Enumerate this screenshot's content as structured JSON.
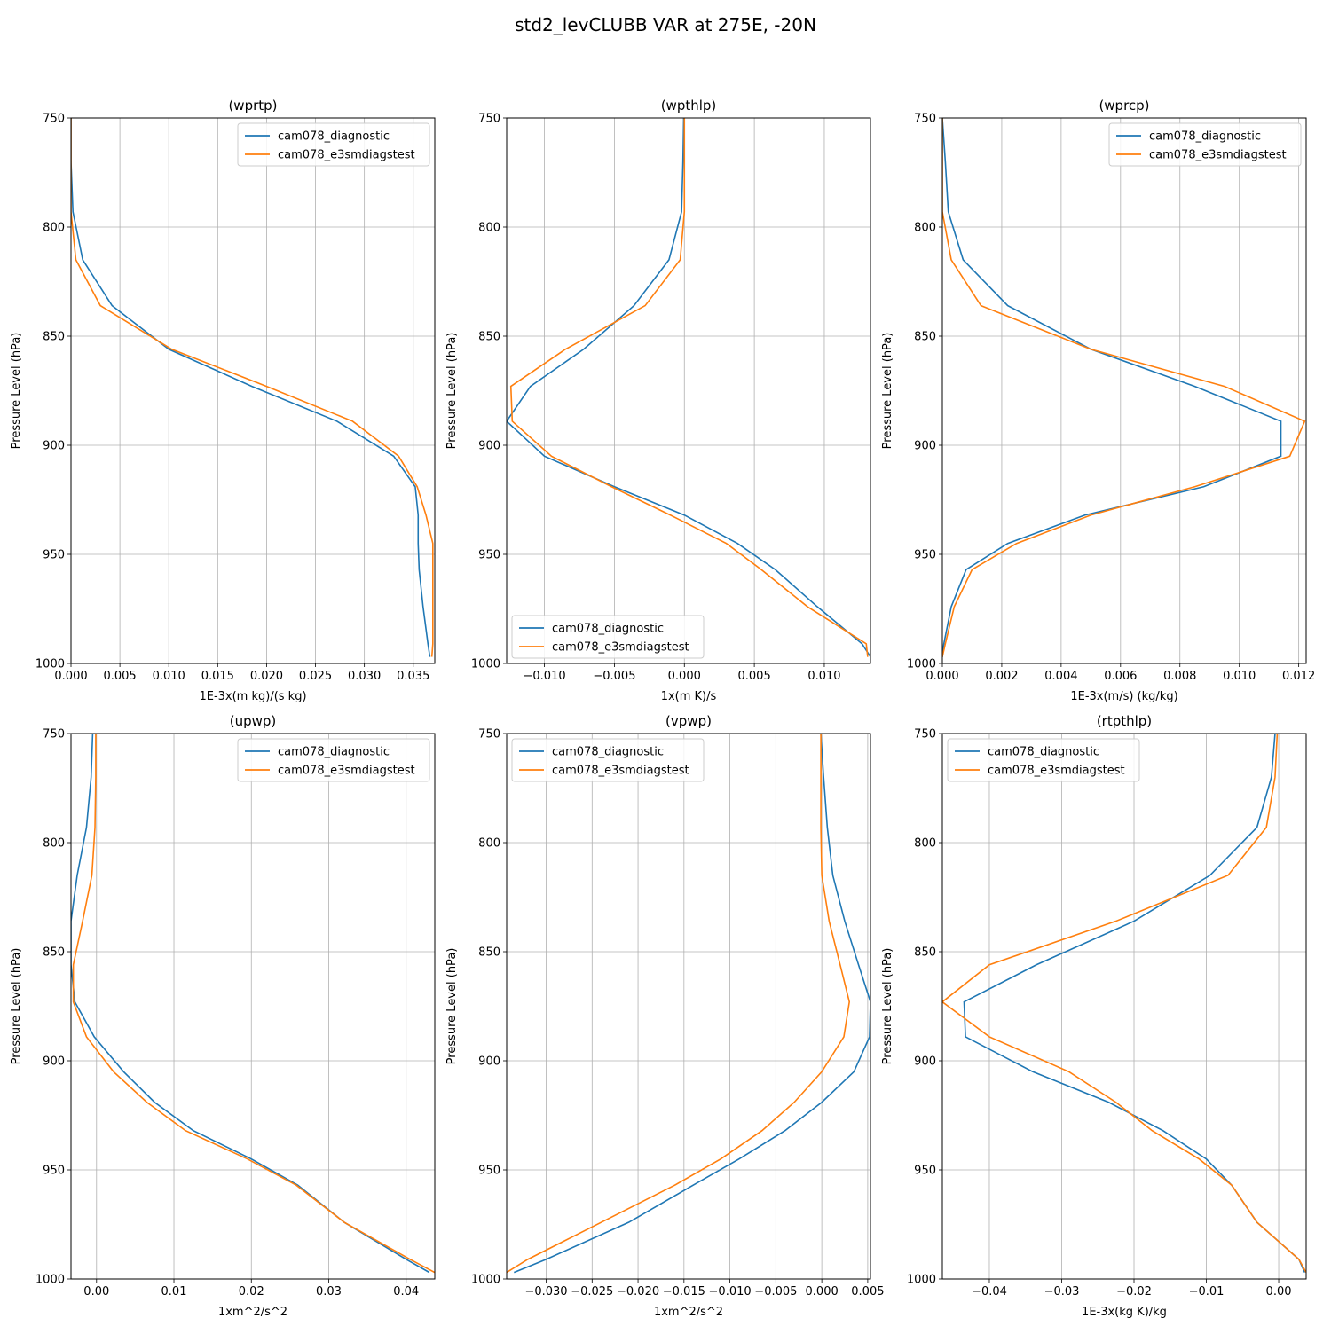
{
  "figure": {
    "title": "std2_levCLUBB VAR at 275E, -20N"
  },
  "colors": {
    "series1": "#1f77b4",
    "series2": "#ff7f0e",
    "grid": "#b0b0b0"
  },
  "chart_data": [
    {
      "type": "line",
      "title": "(wprtp)",
      "xlabel": "1E-3x(m kg)/(s kg)",
      "ylabel": "Pressure Level (hPa)",
      "xlim": [
        0.0,
        0.0372
      ],
      "ylim": [
        1000,
        750
      ],
      "xticks": [
        0.0,
        0.005,
        0.01,
        0.015,
        0.02,
        0.025,
        0.03,
        0.035
      ],
      "xtick_labels": [
        "0.000",
        "0.005",
        "0.010",
        "0.015",
        "0.020",
        "0.025",
        "0.030",
        "0.035"
      ],
      "yticks": [
        750,
        800,
        850,
        900,
        950,
        1000
      ],
      "ytick_labels": [
        "750",
        "800",
        "850",
        "900",
        "950",
        "1000"
      ],
      "grid": true,
      "legend_loc": "upper-right",
      "series": [
        {
          "name": "cam078_diagnostic",
          "x": [
            0.0,
            0.0,
            0.0002,
            0.0012,
            0.0042,
            0.01,
            0.0185,
            0.0272,
            0.033,
            0.0352,
            0.0355,
            0.0355,
            0.0356,
            0.036,
            0.0365,
            0.0367
          ],
          "y": [
            750,
            770,
            793,
            815,
            836,
            856,
            873,
            889,
            905,
            919,
            932,
            945,
            957,
            974,
            991,
            997
          ]
        },
        {
          "name": "cam078_e3smdiagstest",
          "x": [
            0.0,
            0.0,
            0.0,
            0.0005,
            0.003,
            0.0103,
            0.02,
            0.0288,
            0.0335,
            0.0354,
            0.0363,
            0.037,
            0.037,
            0.037,
            0.037,
            0.0369
          ],
          "y": [
            750,
            770,
            793,
            815,
            836,
            856,
            873,
            889,
            905,
            919,
            932,
            945,
            957,
            974,
            991,
            997
          ]
        }
      ]
    },
    {
      "type": "line",
      "title": "(wpthlp)",
      "xlabel": "1x(m K)/s",
      "ylabel": "Pressure Level (hPa)",
      "xlim": [
        -0.0127,
        0.0133
      ],
      "ylim": [
        1000,
        750
      ],
      "xticks": [
        -0.01,
        -0.005,
        0.0,
        0.005,
        0.01
      ],
      "xtick_labels": [
        "−0.010",
        "−0.005",
        "0.000",
        "0.005",
        "0.010"
      ],
      "yticks": [
        750,
        800,
        850,
        900,
        950,
        1000
      ],
      "ytick_labels": [
        "750",
        "800",
        "850",
        "900",
        "950",
        "1000"
      ],
      "grid": true,
      "legend_loc": "lower-left",
      "series": [
        {
          "name": "cam078_diagnostic",
          "x": [
            -5e-05,
            -0.0001,
            -0.0002,
            -0.0011,
            -0.0036,
            -0.0072,
            -0.011,
            -0.0127,
            -0.01,
            -0.005,
            0.0,
            0.0038,
            0.0065,
            0.0095,
            0.0127,
            0.0133
          ],
          "y": [
            750,
            770,
            793,
            815,
            836,
            856,
            873,
            889,
            905,
            919,
            932,
            945,
            957,
            974,
            991,
            997
          ]
        },
        {
          "name": "cam078_e3smdiagstest",
          "x": [
            0.0,
            0.0,
            0.0,
            -0.0003,
            -0.0028,
            -0.0085,
            -0.0124,
            -0.0123,
            -0.0095,
            -0.0052,
            -0.001,
            0.003,
            0.0055,
            0.0088,
            0.013,
            0.0131
          ],
          "y": [
            750,
            770,
            793,
            815,
            836,
            856,
            873,
            889,
            905,
            919,
            932,
            945,
            957,
            974,
            991,
            997
          ]
        }
      ]
    },
    {
      "type": "line",
      "title": "(wprcp)",
      "xlabel": "1E-3x(m/s) (kg/kg)",
      "ylabel": "Pressure Level (hPa)",
      "xlim": [
        0.0,
        0.01225
      ],
      "ylim": [
        1000,
        750
      ],
      "xticks": [
        0.0,
        0.002,
        0.004,
        0.006,
        0.008,
        0.01,
        0.012
      ],
      "xtick_labels": [
        "0.000",
        "0.002",
        "0.004",
        "0.006",
        "0.008",
        "0.010",
        "0.012"
      ],
      "yticks": [
        750,
        800,
        850,
        900,
        950,
        1000
      ],
      "ytick_labels": [
        "750",
        "800",
        "850",
        "900",
        "950",
        "1000"
      ],
      "grid": true,
      "legend_loc": "upper-right",
      "series": [
        {
          "name": "cam078_diagnostic",
          "x": [
            0.0,
            0.0001,
            0.0002,
            0.0007,
            0.0022,
            0.005,
            0.0085,
            0.0114,
            0.0114,
            0.0088,
            0.0048,
            0.0022,
            0.0008,
            0.0003,
            5e-05,
            0.0
          ],
          "y": [
            750,
            770,
            793,
            815,
            836,
            856,
            873,
            889,
            905,
            919,
            932,
            945,
            957,
            974,
            991,
            997
          ]
        },
        {
          "name": "cam078_e3smdiagstest",
          "x": [
            0.0,
            0.0,
            0.0,
            0.0003,
            0.0013,
            0.005,
            0.0095,
            0.0122,
            0.0117,
            0.0085,
            0.005,
            0.0025,
            0.001,
            0.0004,
            0.0001,
            0.0
          ],
          "y": [
            750,
            770,
            793,
            815,
            836,
            856,
            873,
            889,
            905,
            919,
            932,
            945,
            957,
            974,
            991,
            997
          ]
        }
      ]
    },
    {
      "type": "line",
      "title": "(upwp)",
      "xlabel": "1xm^2/s^2",
      "ylabel": "Pressure Level (hPa)",
      "xlim": [
        -0.0033,
        0.0437
      ],
      "ylim": [
        1000,
        750
      ],
      "xticks": [
        0.0,
        0.01,
        0.02,
        0.03,
        0.04
      ],
      "xtick_labels": [
        "0.00",
        "0.01",
        "0.02",
        "0.03",
        "0.04"
      ],
      "yticks": [
        750,
        800,
        850,
        900,
        950,
        1000
      ],
      "ytick_labels": [
        "750",
        "800",
        "850",
        "900",
        "950",
        "1000"
      ],
      "grid": true,
      "legend_loc": "upper-right",
      "series": [
        {
          "name": "cam078_diagnostic",
          "x": [
            -0.0005,
            -0.0007,
            -0.0013,
            -0.0025,
            -0.0033,
            -0.0033,
            -0.0028,
            -0.0003,
            0.0035,
            0.0075,
            0.0125,
            0.02,
            0.026,
            0.032,
            0.04,
            0.043
          ],
          "y": [
            750,
            770,
            793,
            815,
            836,
            856,
            873,
            889,
            905,
            919,
            932,
            945,
            957,
            974,
            991,
            997
          ]
        },
        {
          "name": "cam078_e3smdiagstest",
          "x": [
            -0.0001,
            -0.0001,
            -0.0002,
            -0.0006,
            -0.0018,
            -0.003,
            -0.003,
            -0.0013,
            0.0022,
            0.0065,
            0.0115,
            0.0195,
            0.0258,
            0.032,
            0.0405,
            0.0437
          ],
          "y": [
            750,
            770,
            793,
            815,
            836,
            856,
            873,
            889,
            905,
            919,
            932,
            945,
            957,
            974,
            991,
            997
          ]
        }
      ]
    },
    {
      "type": "line",
      "title": "(vpwp)",
      "xlabel": "1xm^2/s^2",
      "ylabel": "Pressure Level (hPa)",
      "xlim": [
        -0.0343,
        0.0053
      ],
      "ylim": [
        1000,
        750
      ],
      "xticks": [
        -0.03,
        -0.025,
        -0.02,
        -0.015,
        -0.01,
        -0.005,
        0.0,
        0.005
      ],
      "xtick_labels": [
        "−0.030",
        "−0.025",
        "−0.020",
        "−0.015",
        "−0.010",
        "−0.005",
        "0.000",
        "0.005"
      ],
      "yticks": [
        750,
        800,
        850,
        900,
        950,
        1000
      ],
      "ytick_labels": [
        "750",
        "800",
        "850",
        "900",
        "950",
        "1000"
      ],
      "grid": true,
      "legend_loc": "upper-left",
      "series": [
        {
          "name": "cam078_diagnostic",
          "x": [
            -0.0001,
            0.0002,
            0.0006,
            0.0012,
            0.0025,
            0.004,
            0.0053,
            0.0052,
            0.0035,
            0.0,
            -0.004,
            -0.009,
            -0.014,
            -0.021,
            -0.03,
            -0.0335
          ],
          "y": [
            750,
            770,
            793,
            815,
            836,
            856,
            873,
            889,
            905,
            919,
            932,
            945,
            957,
            974,
            991,
            997
          ]
        },
        {
          "name": "cam078_e3smdiagstest",
          "x": [
            -0.0001,
            -0.0001,
            -0.0001,
            0.0,
            0.0008,
            0.002,
            0.003,
            0.0024,
            0.0,
            -0.003,
            -0.0065,
            -0.011,
            -0.016,
            -0.024,
            -0.032,
            -0.0343
          ],
          "y": [
            750,
            770,
            793,
            815,
            836,
            856,
            873,
            889,
            905,
            919,
            932,
            945,
            957,
            974,
            991,
            997
          ]
        }
      ]
    },
    {
      "type": "line",
      "title": "(rtpthlp)",
      "xlabel": "1E-3x(kg K)/kg",
      "ylabel": "Pressure Level (hPa)",
      "xlim": [
        -0.0465,
        0.0038
      ],
      "ylim": [
        1000,
        750
      ],
      "xticks": [
        -0.04,
        -0.03,
        -0.02,
        -0.01,
        0.0
      ],
      "xtick_labels": [
        "−0.04",
        "−0.03",
        "−0.02",
        "−0.01",
        "0.00"
      ],
      "yticks": [
        750,
        800,
        850,
        900,
        950,
        1000
      ],
      "ytick_labels": [
        "750",
        "800",
        "850",
        "900",
        "950",
        "1000"
      ],
      "grid": true,
      "legend_loc": "upper-left",
      "series": [
        {
          "name": "cam078_diagnostic",
          "x": [
            -0.0005,
            -0.001,
            -0.003,
            -0.0095,
            -0.02,
            -0.0335,
            -0.0435,
            -0.0433,
            -0.034,
            -0.0235,
            -0.016,
            -0.01,
            -0.0065,
            -0.003,
            0.0028,
            0.0036
          ],
          "y": [
            750,
            770,
            793,
            815,
            836,
            856,
            873,
            889,
            905,
            919,
            932,
            945,
            957,
            974,
            991,
            997
          ]
        },
        {
          "name": "cam078_e3smdiagstest",
          "x": [
            -0.0002,
            -0.0005,
            -0.0017,
            -0.007,
            -0.0225,
            -0.04,
            -0.0465,
            -0.04,
            -0.029,
            -0.0225,
            -0.0175,
            -0.011,
            -0.0065,
            -0.003,
            0.0028,
            0.0038
          ],
          "y": [
            750,
            770,
            793,
            815,
            836,
            856,
            873,
            889,
            905,
            919,
            932,
            945,
            957,
            974,
            991,
            997
          ]
        }
      ]
    }
  ]
}
